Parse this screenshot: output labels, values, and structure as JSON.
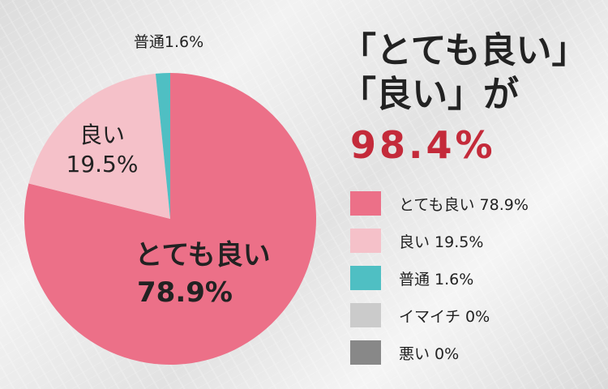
{
  "headline": {
    "line1": "「とても良い」",
    "line2": "「良い」が",
    "total": "98.4%"
  },
  "chart_data": {
    "type": "pie",
    "title": "",
    "slices": [
      {
        "name": "とても良い",
        "value": 78.9,
        "color": "#ec7088",
        "label_line1": "とても良い",
        "label_line2": "78.9%",
        "legend": "とても良い 78.9%"
      },
      {
        "name": "良い",
        "value": 19.5,
        "color": "#f5c1c9",
        "label_line1": "良い",
        "label_line2": "19.5%",
        "legend": "良い 19.5%"
      },
      {
        "name": "普通",
        "value": 1.6,
        "color": "#4fbfc3",
        "label_line1": "普通1.6%",
        "label_line2": "",
        "legend": "普通 1.6%"
      },
      {
        "name": "イマイチ",
        "value": 0,
        "color": "#cbcbcb",
        "label_line1": "",
        "label_line2": "",
        "legend": "イマイチ 0%"
      },
      {
        "name": "悪い",
        "value": 0,
        "color": "#888888",
        "label_line1": "",
        "label_line2": "",
        "legend": "悪い 0%"
      }
    ],
    "legend_position": "right"
  }
}
